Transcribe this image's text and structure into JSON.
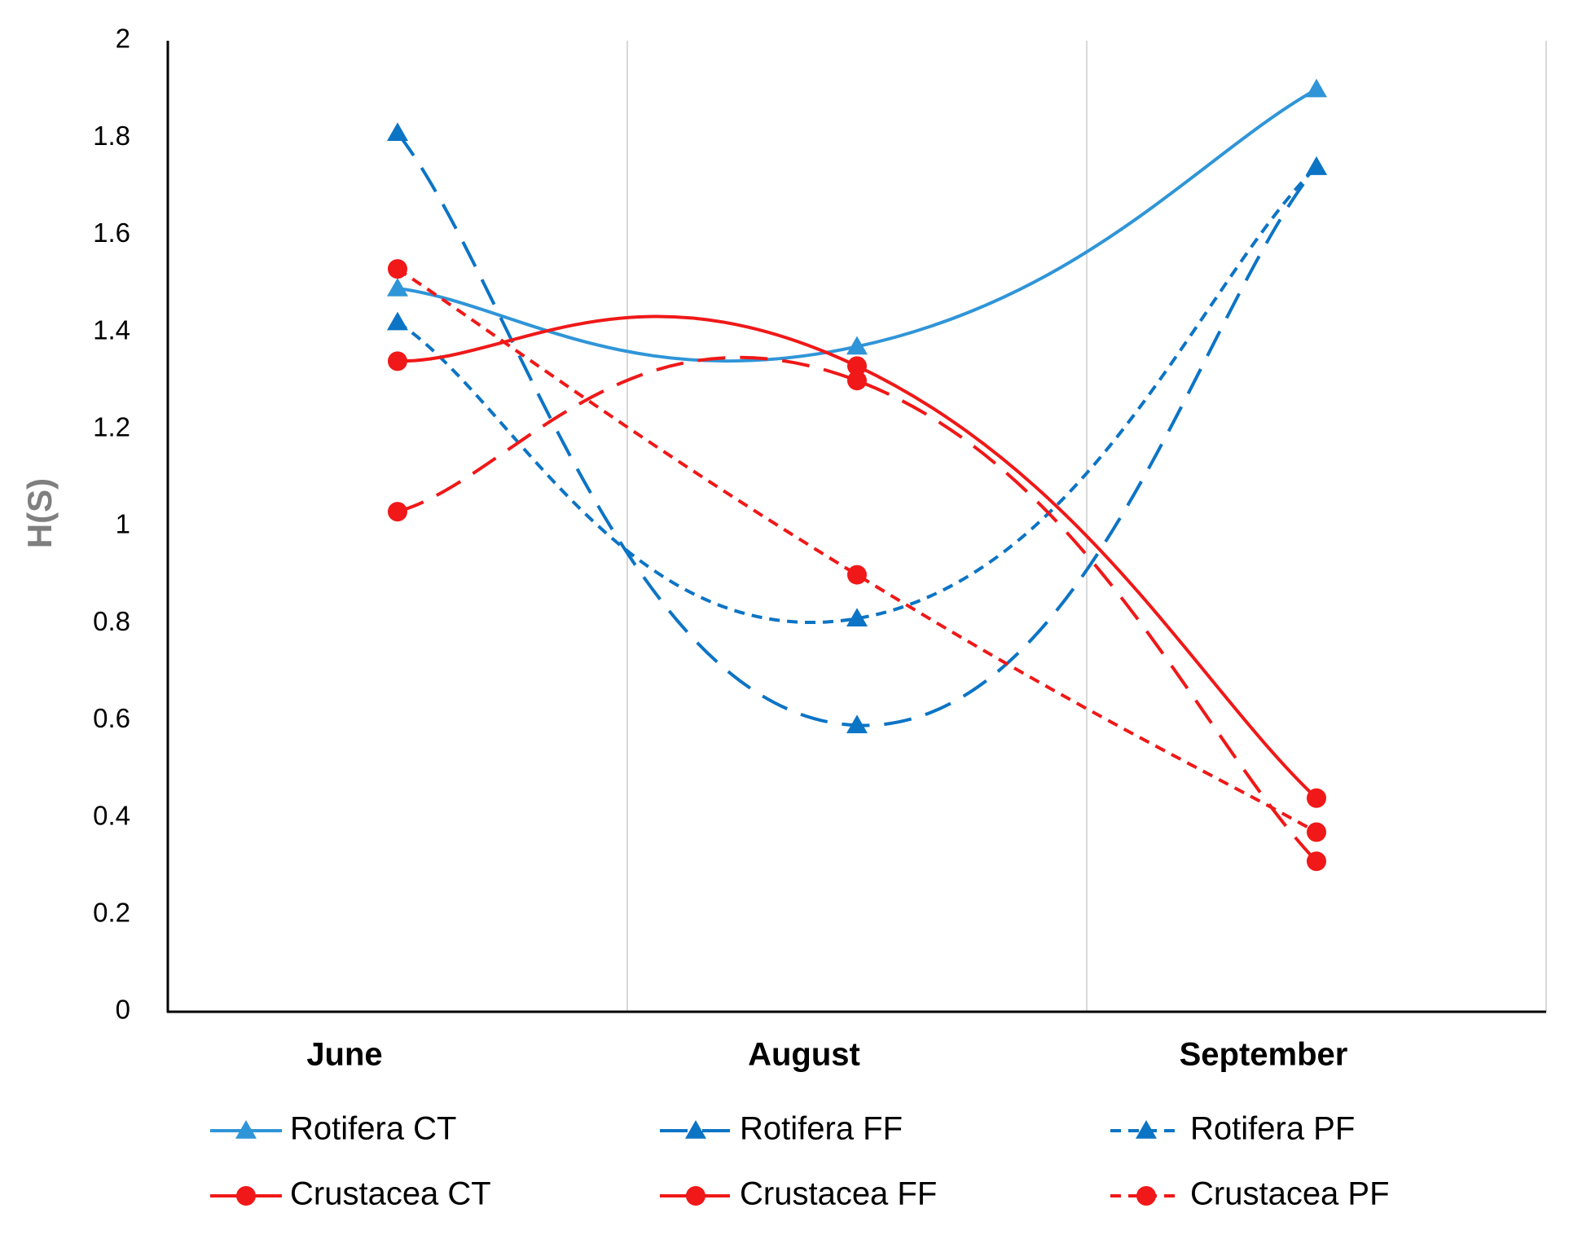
{
  "chart_data": {
    "type": "line",
    "title": "",
    "xlabel": "",
    "ylabel": "H(S)",
    "categories": [
      "June",
      "August",
      "September"
    ],
    "ylim": [
      0,
      2
    ],
    "yticks": [
      0,
      0.2,
      0.4,
      0.6,
      0.8,
      1,
      1.2,
      1.4,
      1.6,
      1.8,
      2
    ],
    "ytick_labels": [
      "0",
      "0.2",
      "0.4",
      "0.6",
      "0.8",
      "1",
      "1.2",
      "1.4",
      "1.6",
      "1.8",
      "2"
    ],
    "smoothed": true,
    "legend_position": "bottom",
    "series": [
      {
        "name": "Rotifera CT",
        "values": [
          1.49,
          1.37,
          1.9
        ],
        "color": "#2f95d8",
        "dash": "solid",
        "marker": "triangle"
      },
      {
        "name": "Rotifera FF",
        "values": [
          1.81,
          0.59,
          1.74
        ],
        "color": "#0c74c5",
        "dash": "long",
        "marker": "triangle"
      },
      {
        "name": "Rotifera PF",
        "values": [
          1.42,
          0.81,
          1.74
        ],
        "color": "#0c74c5",
        "dash": "short",
        "marker": "triangle"
      },
      {
        "name": "Crustacea CT",
        "values": [
          1.34,
          1.33,
          0.44
        ],
        "color": "#f01818",
        "dash": "solid",
        "marker": "circle"
      },
      {
        "name": "Crustacea FF",
        "values": [
          1.03,
          1.3,
          0.31
        ],
        "color": "#f01818",
        "dash": "long",
        "marker": "circle"
      },
      {
        "name": "Crustacea PF",
        "values": [
          1.53,
          0.9,
          0.37
        ],
        "color": "#f01818",
        "dash": "short",
        "marker": "circle"
      }
    ]
  }
}
